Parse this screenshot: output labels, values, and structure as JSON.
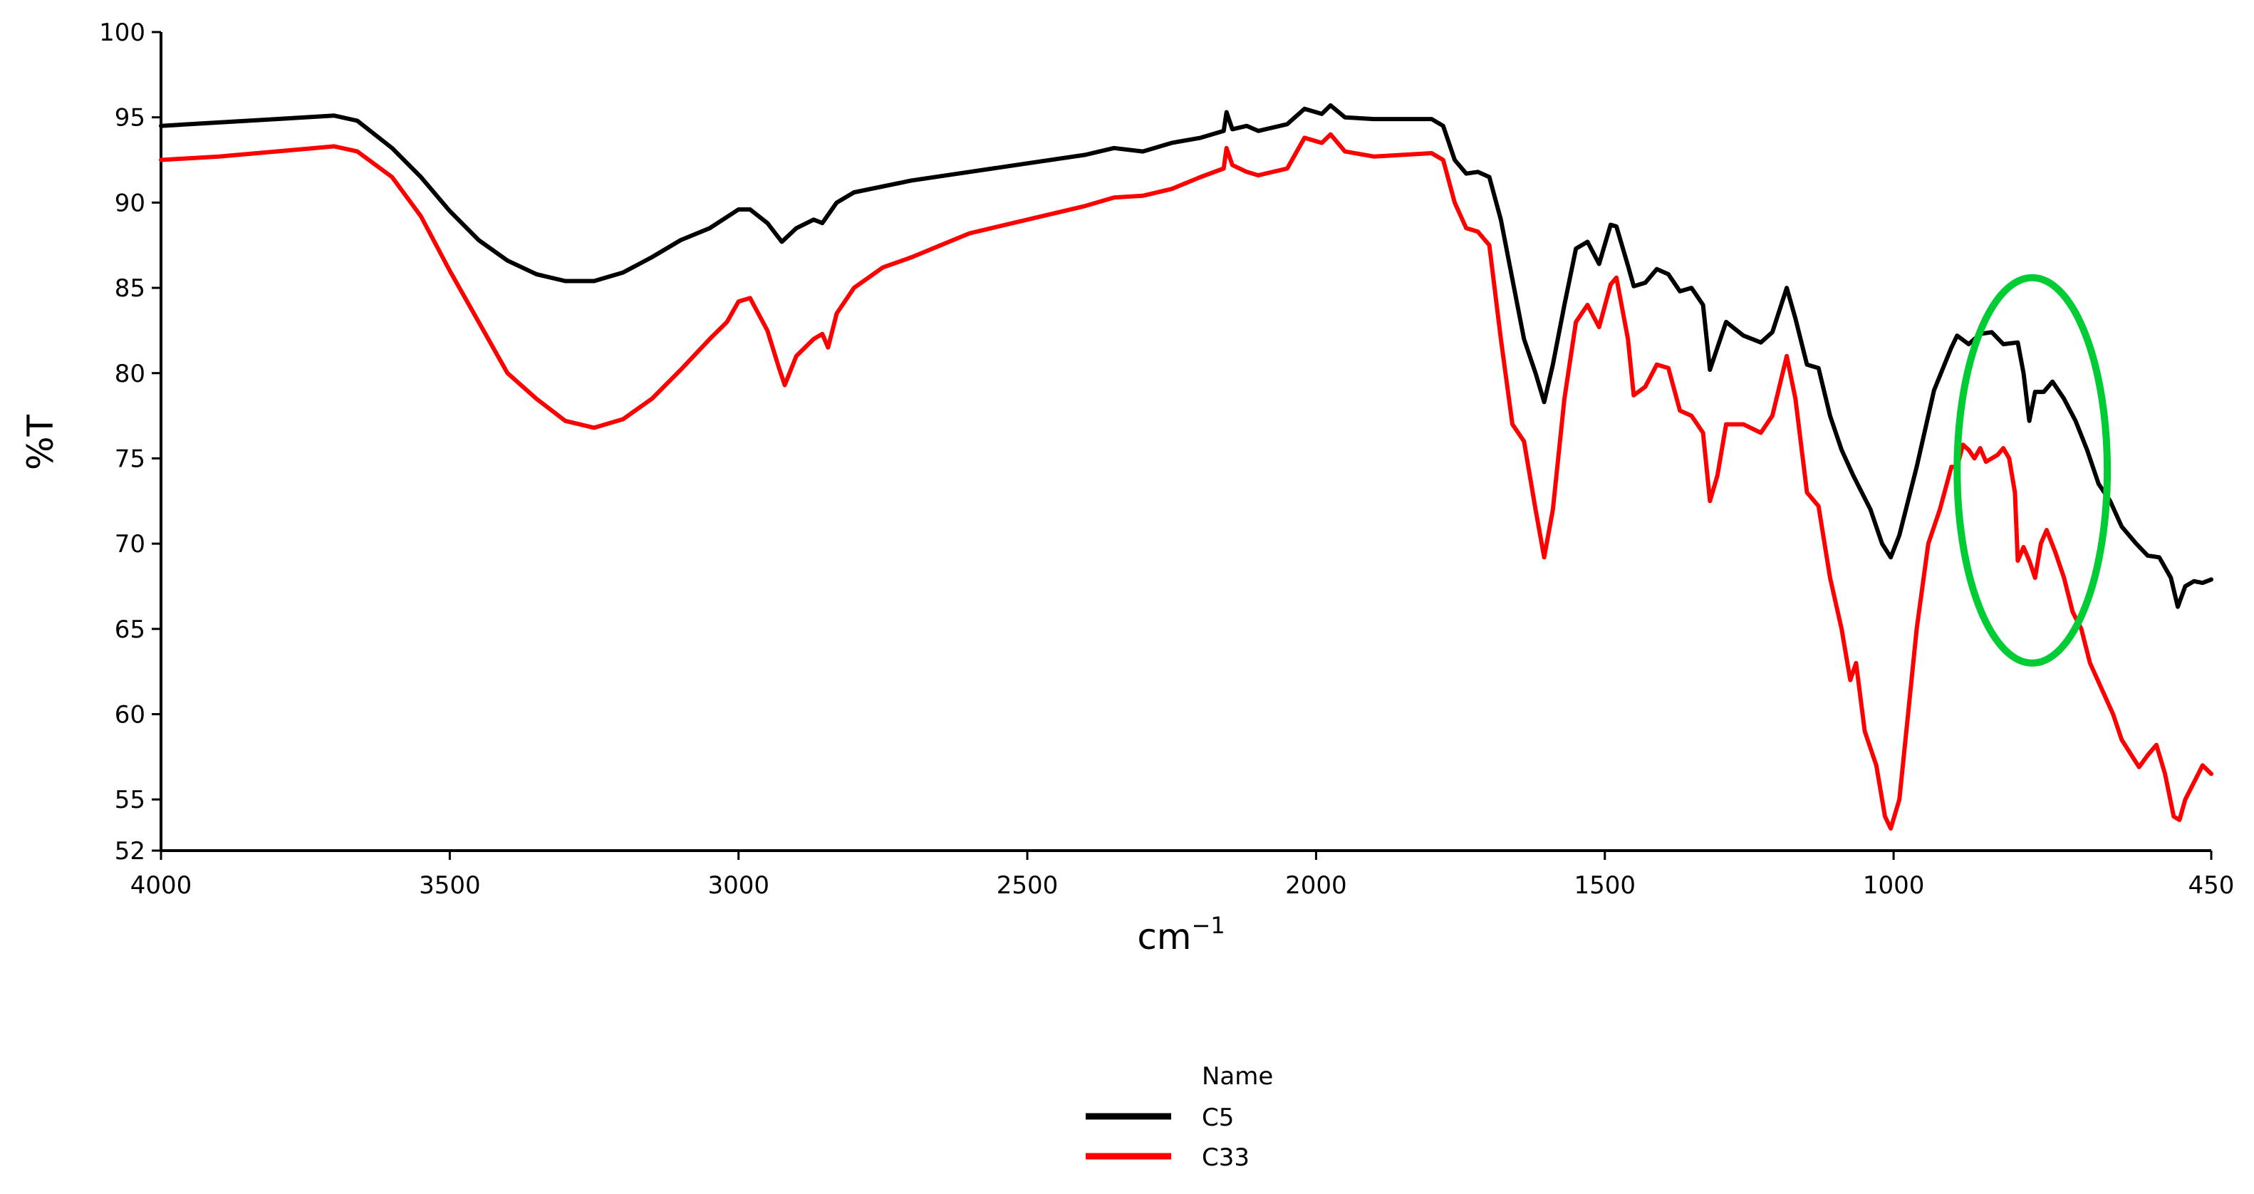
{
  "chart_data": {
    "type": "line",
    "xlabel": "cm",
    "xlabel_sup": "−1",
    "ylabel": "%T",
    "xlim": [
      4000,
      450
    ],
    "ylim": [
      52,
      100
    ],
    "x_reversed": true,
    "grid": false,
    "x_ticks": [
      4000,
      3500,
      3000,
      2500,
      2000,
      1500,
      1000,
      450
    ],
    "y_ticks": [
      52,
      55,
      60,
      65,
      70,
      75,
      80,
      85,
      90,
      95,
      100
    ],
    "legend": {
      "title": "Name",
      "placement": "bottom-center",
      "entries": [
        "C5",
        "C33"
      ]
    },
    "series": [
      {
        "name": "C5",
        "color": "#000000",
        "points": [
          [
            4000,
            94.5
          ],
          [
            3900,
            94.7
          ],
          [
            3800,
            94.9
          ],
          [
            3700,
            95.1
          ],
          [
            3660,
            94.8
          ],
          [
            3600,
            93.2
          ],
          [
            3550,
            91.5
          ],
          [
            3500,
            89.5
          ],
          [
            3450,
            87.8
          ],
          [
            3400,
            86.6
          ],
          [
            3350,
            85.8
          ],
          [
            3300,
            85.4
          ],
          [
            3250,
            85.4
          ],
          [
            3200,
            85.9
          ],
          [
            3150,
            86.8
          ],
          [
            3100,
            87.8
          ],
          [
            3050,
            88.5
          ],
          [
            3000,
            89.6
          ],
          [
            2980,
            89.6
          ],
          [
            2950,
            88.8
          ],
          [
            2925,
            87.7
          ],
          [
            2900,
            88.5
          ],
          [
            2870,
            89.0
          ],
          [
            2855,
            88.8
          ],
          [
            2830,
            90.0
          ],
          [
            2800,
            90.6
          ],
          [
            2700,
            91.3
          ],
          [
            2600,
            91.8
          ],
          [
            2500,
            92.3
          ],
          [
            2400,
            92.8
          ],
          [
            2350,
            93.2
          ],
          [
            2300,
            93.0
          ],
          [
            2250,
            93.5
          ],
          [
            2200,
            93.8
          ],
          [
            2160,
            94.2
          ],
          [
            2155,
            95.3
          ],
          [
            2145,
            94.3
          ],
          [
            2120,
            94.5
          ],
          [
            2100,
            94.2
          ],
          [
            2050,
            94.6
          ],
          [
            2020,
            95.5
          ],
          [
            1990,
            95.2
          ],
          [
            1975,
            95.7
          ],
          [
            1950,
            95.0
          ],
          [
            1900,
            94.9
          ],
          [
            1850,
            94.9
          ],
          [
            1800,
            94.9
          ],
          [
            1780,
            94.5
          ],
          [
            1760,
            92.5
          ],
          [
            1740,
            91.7
          ],
          [
            1720,
            91.8
          ],
          [
            1700,
            91.5
          ],
          [
            1680,
            89.0
          ],
          [
            1660,
            85.5
          ],
          [
            1640,
            82.0
          ],
          [
            1620,
            80.0
          ],
          [
            1605,
            78.3
          ],
          [
            1590,
            80.5
          ],
          [
            1570,
            84.0
          ],
          [
            1550,
            87.3
          ],
          [
            1530,
            87.7
          ],
          [
            1510,
            86.4
          ],
          [
            1490,
            88.7
          ],
          [
            1480,
            88.6
          ],
          [
            1460,
            86.3
          ],
          [
            1450,
            85.1
          ],
          [
            1430,
            85.3
          ],
          [
            1410,
            86.1
          ],
          [
            1390,
            85.8
          ],
          [
            1370,
            84.8
          ],
          [
            1350,
            85.0
          ],
          [
            1330,
            84.0
          ],
          [
            1318,
            80.2
          ],
          [
            1305,
            81.5
          ],
          [
            1290,
            83.0
          ],
          [
            1260,
            82.2
          ],
          [
            1230,
            81.8
          ],
          [
            1210,
            82.4
          ],
          [
            1185,
            85.0
          ],
          [
            1170,
            83.2
          ],
          [
            1150,
            80.5
          ],
          [
            1130,
            80.3
          ],
          [
            1110,
            77.5
          ],
          [
            1090,
            75.5
          ],
          [
            1070,
            74.0
          ],
          [
            1040,
            72.0
          ],
          [
            1020,
            70.0
          ],
          [
            1005,
            69.2
          ],
          [
            990,
            70.5
          ],
          [
            960,
            74.5
          ],
          [
            930,
            79.0
          ],
          [
            900,
            81.5
          ],
          [
            890,
            82.2
          ],
          [
            870,
            81.7
          ],
          [
            850,
            82.3
          ],
          [
            830,
            82.4
          ],
          [
            810,
            81.7
          ],
          [
            785,
            81.8
          ],
          [
            775,
            80.0
          ],
          [
            765,
            77.2
          ],
          [
            755,
            78.9
          ],
          [
            740,
            78.9
          ],
          [
            725,
            79.5
          ],
          [
            705,
            78.5
          ],
          [
            685,
            77.2
          ],
          [
            665,
            75.5
          ],
          [
            645,
            73.5
          ],
          [
            625,
            72.5
          ],
          [
            605,
            71.0
          ],
          [
            580,
            70.0
          ],
          [
            560,
            69.3
          ],
          [
            540,
            69.2
          ],
          [
            520,
            68.0
          ],
          [
            508,
            66.3
          ],
          [
            495,
            67.5
          ],
          [
            480,
            67.8
          ],
          [
            465,
            67.7
          ],
          [
            450,
            67.9
          ]
        ]
      },
      {
        "name": "C33",
        "color": "#ff0000",
        "points": [
          [
            4000,
            92.5
          ],
          [
            3900,
            92.7
          ],
          [
            3800,
            93.0
          ],
          [
            3700,
            93.3
          ],
          [
            3660,
            93.0
          ],
          [
            3600,
            91.5
          ],
          [
            3550,
            89.2
          ],
          [
            3500,
            86.0
          ],
          [
            3450,
            83.0
          ],
          [
            3400,
            80.0
          ],
          [
            3350,
            78.5
          ],
          [
            3300,
            77.2
          ],
          [
            3250,
            76.8
          ],
          [
            3200,
            77.3
          ],
          [
            3150,
            78.5
          ],
          [
            3100,
            80.2
          ],
          [
            3050,
            82.0
          ],
          [
            3020,
            83.0
          ],
          [
            3000,
            84.2
          ],
          [
            2980,
            84.4
          ],
          [
            2950,
            82.5
          ],
          [
            2930,
            80.3
          ],
          [
            2920,
            79.3
          ],
          [
            2900,
            81.0
          ],
          [
            2870,
            82.0
          ],
          [
            2855,
            82.3
          ],
          [
            2845,
            81.5
          ],
          [
            2830,
            83.5
          ],
          [
            2800,
            85.0
          ],
          [
            2750,
            86.2
          ],
          [
            2700,
            86.8
          ],
          [
            2650,
            87.5
          ],
          [
            2600,
            88.2
          ],
          [
            2500,
            89.0
          ],
          [
            2400,
            89.8
          ],
          [
            2350,
            90.3
          ],
          [
            2300,
            90.4
          ],
          [
            2250,
            90.8
          ],
          [
            2200,
            91.5
          ],
          [
            2160,
            92.0
          ],
          [
            2155,
            93.2
          ],
          [
            2145,
            92.2
          ],
          [
            2120,
            91.8
          ],
          [
            2100,
            91.6
          ],
          [
            2050,
            92.0
          ],
          [
            2020,
            93.8
          ],
          [
            1990,
            93.5
          ],
          [
            1975,
            94.0
          ],
          [
            1950,
            93.0
          ],
          [
            1900,
            92.7
          ],
          [
            1850,
            92.8
          ],
          [
            1800,
            92.9
          ],
          [
            1780,
            92.5
          ],
          [
            1760,
            90.0
          ],
          [
            1740,
            88.5
          ],
          [
            1720,
            88.3
          ],
          [
            1700,
            87.5
          ],
          [
            1680,
            82.0
          ],
          [
            1660,
            77.0
          ],
          [
            1640,
            76.0
          ],
          [
            1620,
            72.0
          ],
          [
            1605,
            69.2
          ],
          [
            1590,
            72.0
          ],
          [
            1570,
            78.5
          ],
          [
            1550,
            83.0
          ],
          [
            1530,
            84.0
          ],
          [
            1510,
            82.7
          ],
          [
            1490,
            85.2
          ],
          [
            1480,
            85.6
          ],
          [
            1460,
            82.0
          ],
          [
            1450,
            78.7
          ],
          [
            1430,
            79.2
          ],
          [
            1410,
            80.5
          ],
          [
            1390,
            80.3
          ],
          [
            1370,
            77.8
          ],
          [
            1350,
            77.5
          ],
          [
            1330,
            76.5
          ],
          [
            1318,
            72.5
          ],
          [
            1305,
            74.0
          ],
          [
            1290,
            77.0
          ],
          [
            1260,
            77.0
          ],
          [
            1230,
            76.5
          ],
          [
            1210,
            77.5
          ],
          [
            1185,
            81.0
          ],
          [
            1170,
            78.5
          ],
          [
            1150,
            73.0
          ],
          [
            1130,
            72.2
          ],
          [
            1110,
            68.0
          ],
          [
            1090,
            65.0
          ],
          [
            1075,
            62.0
          ],
          [
            1065,
            63.0
          ],
          [
            1050,
            59.0
          ],
          [
            1030,
            57.0
          ],
          [
            1015,
            54.0
          ],
          [
            1005,
            53.3
          ],
          [
            990,
            55.0
          ],
          [
            975,
            60.0
          ],
          [
            960,
            65.0
          ],
          [
            940,
            70.0
          ],
          [
            920,
            72.0
          ],
          [
            900,
            74.5
          ],
          [
            890,
            74.5
          ],
          [
            880,
            75.8
          ],
          [
            870,
            75.5
          ],
          [
            860,
            75.0
          ],
          [
            850,
            75.6
          ],
          [
            840,
            74.8
          ],
          [
            820,
            75.2
          ],
          [
            810,
            75.6
          ],
          [
            800,
            75.0
          ],
          [
            790,
            73.0
          ],
          [
            785,
            69.0
          ],
          [
            775,
            69.8
          ],
          [
            765,
            69.0
          ],
          [
            755,
            68.0
          ],
          [
            745,
            70.0
          ],
          [
            735,
            70.8
          ],
          [
            720,
            69.5
          ],
          [
            705,
            68.0
          ],
          [
            690,
            66.0
          ],
          [
            675,
            65.0
          ],
          [
            660,
            63.0
          ],
          [
            640,
            61.5
          ],
          [
            620,
            60.0
          ],
          [
            605,
            58.5
          ],
          [
            590,
            57.7
          ],
          [
            575,
            56.9
          ],
          [
            560,
            57.6
          ],
          [
            545,
            58.2
          ],
          [
            530,
            56.5
          ],
          [
            515,
            54.0
          ],
          [
            505,
            53.8
          ],
          [
            495,
            55.0
          ],
          [
            480,
            56.0
          ],
          [
            465,
            57.0
          ],
          [
            450,
            56.5
          ]
        ]
      }
    ],
    "annotations": [
      {
        "type": "ellipse",
        "color": "#00cc33",
        "x_center": 760,
        "y_center": 74.3,
        "x_radius": 130,
        "y_radius": 11.3
      }
    ]
  }
}
